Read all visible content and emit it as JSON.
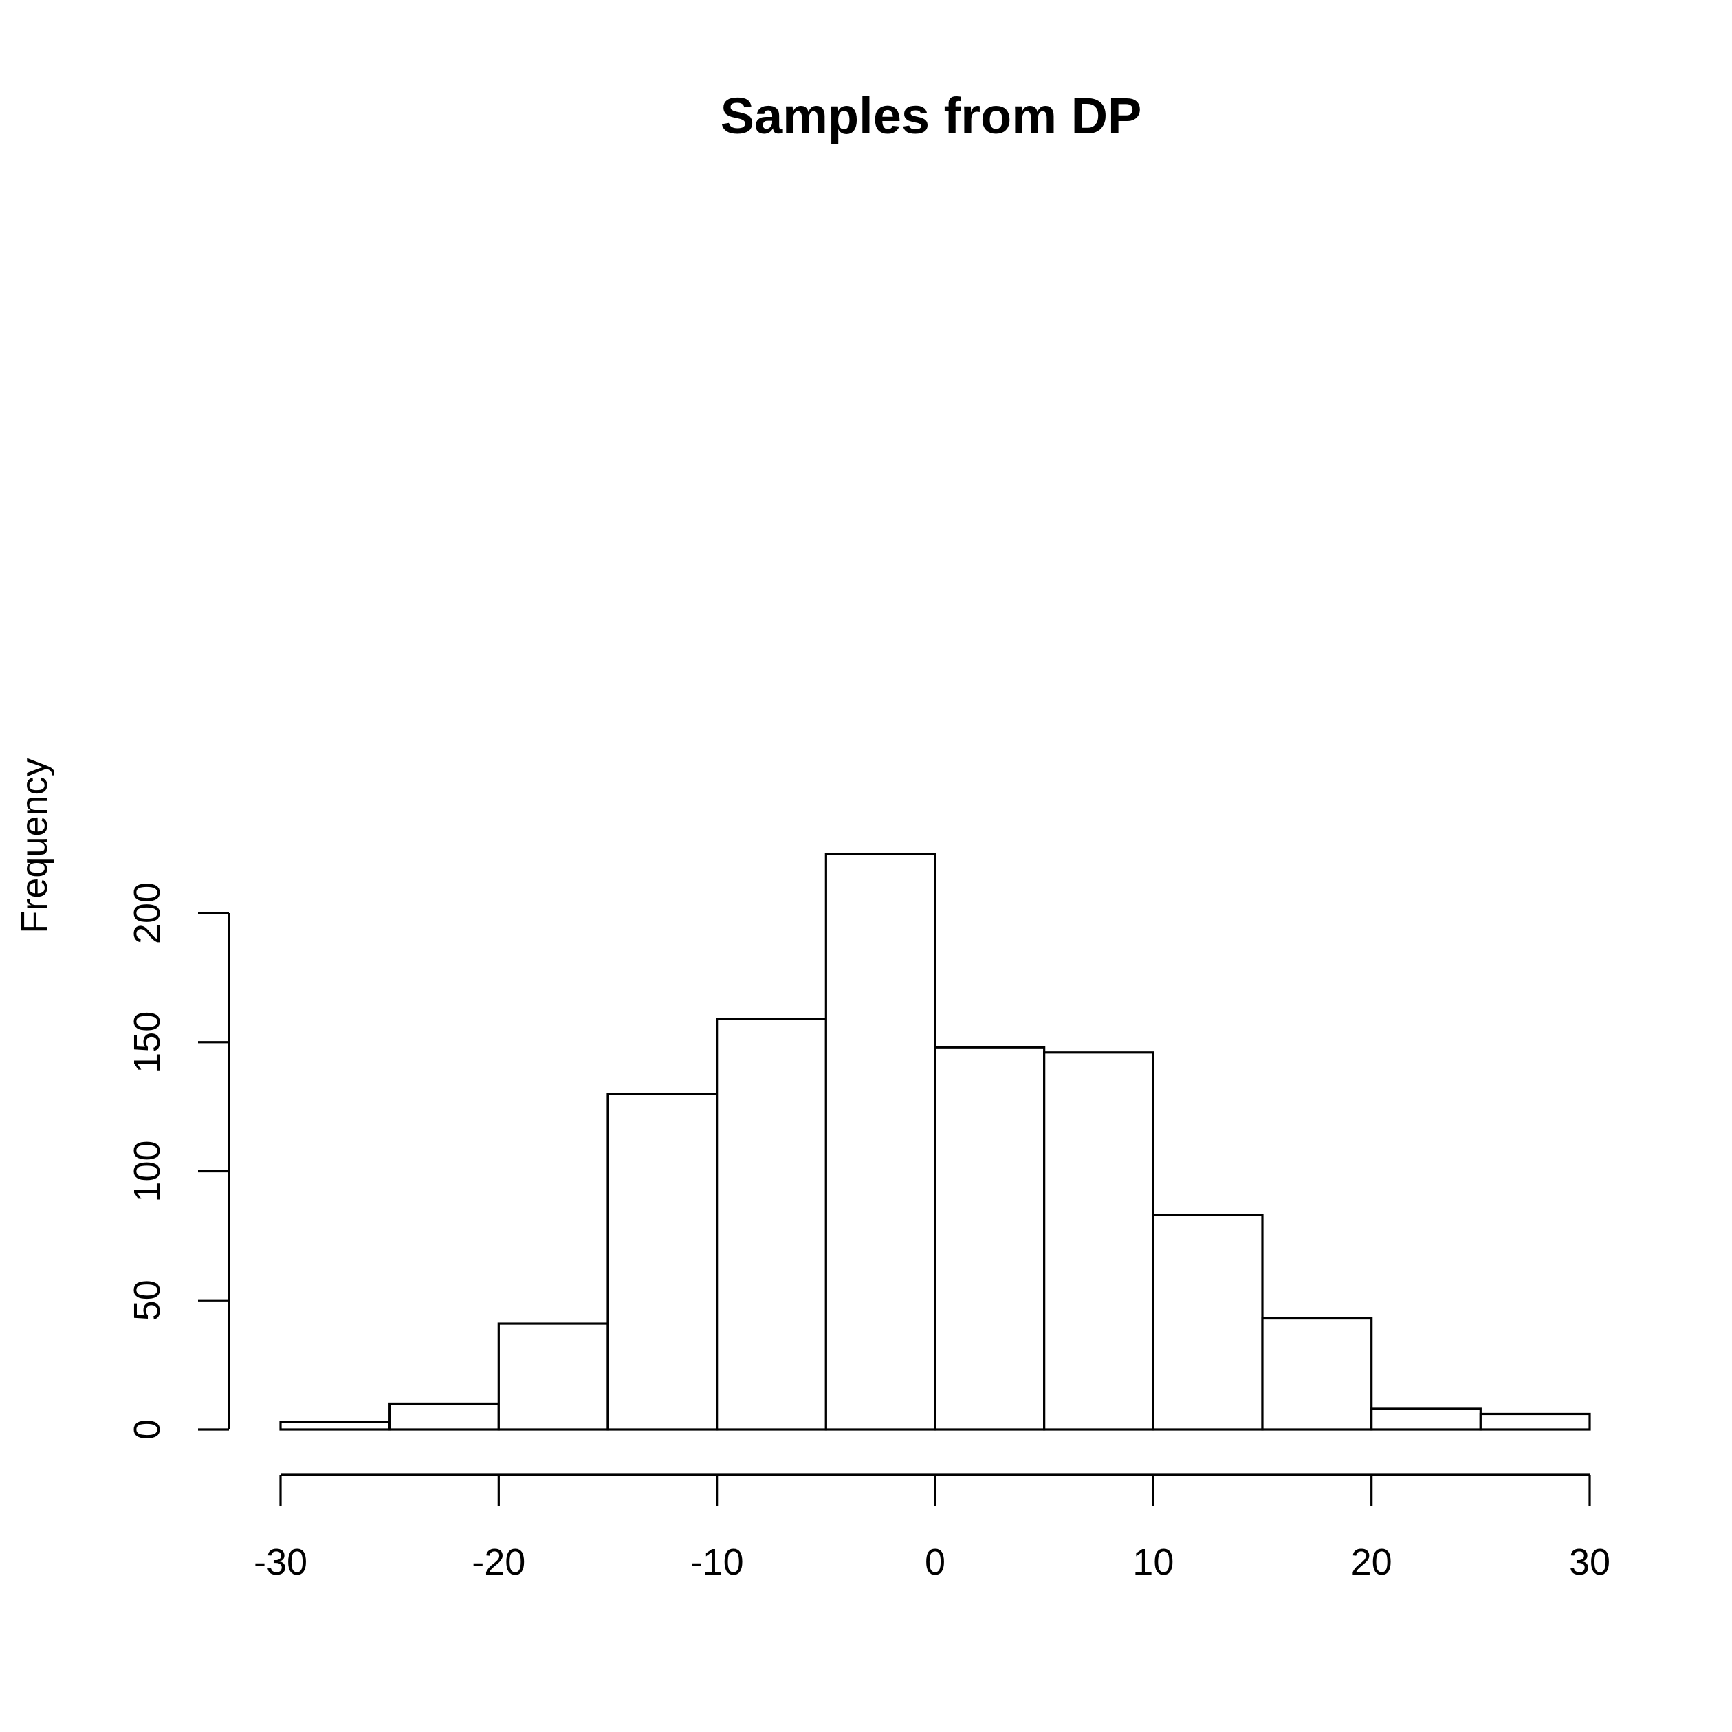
{
  "chart_data": {
    "type": "bar",
    "title": "Samples from DP",
    "xlabel": "",
    "ylabel": "Frequency",
    "bins": [
      {
        "start": -30,
        "end": -25,
        "count": 3
      },
      {
        "start": -25,
        "end": -20,
        "count": 10
      },
      {
        "start": -20,
        "end": -15,
        "count": 41
      },
      {
        "start": -15,
        "end": -10,
        "count": 130
      },
      {
        "start": -10,
        "end": -5,
        "count": 159
      },
      {
        "start": -5,
        "end": 0,
        "count": 223
      },
      {
        "start": 0,
        "end": 5,
        "count": 148
      },
      {
        "start": 5,
        "end": 10,
        "count": 146
      },
      {
        "start": 10,
        "end": 15,
        "count": 83
      },
      {
        "start": 15,
        "end": 20,
        "count": 43
      },
      {
        "start": 20,
        "end": 25,
        "count": 8
      },
      {
        "start": 25,
        "end": 30,
        "count": 6
      }
    ],
    "xlim": [
      -30,
      30
    ],
    "ylim": [
      0,
      223
    ],
    "x_ticks": [
      -30,
      -20,
      -10,
      0,
      10,
      20,
      30
    ],
    "x_tick_labels": [
      "-30",
      "-20",
      "-10",
      "0",
      "10",
      "20",
      "30"
    ],
    "y_ticks": [
      0,
      50,
      100,
      150,
      200
    ],
    "y_tick_labels": [
      "0",
      "50",
      "100",
      "150",
      "200"
    ],
    "grid": false,
    "legend": "none",
    "bar_fill": "#ffffff",
    "bar_stroke": "#000000"
  }
}
